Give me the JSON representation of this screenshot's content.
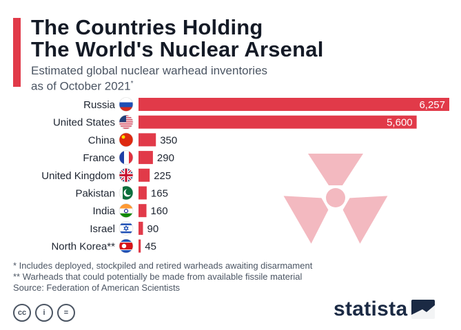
{
  "header": {
    "title_line1": "The Countries Holding",
    "title_line2": "The World's Nuclear Arsenal",
    "subtitle_line1": "Estimated global nuclear warhead inventories",
    "subtitle_line2": "as of October 2021",
    "subtitle_mark": "*"
  },
  "chart_data": {
    "type": "bar",
    "orientation": "horizontal",
    "categories": [
      "Russia",
      "United States",
      "China",
      "France",
      "United Kingdom",
      "Pakistan",
      "India",
      "Israel",
      "North Korea**"
    ],
    "values": [
      6257,
      5600,
      350,
      290,
      225,
      165,
      160,
      90,
      45
    ],
    "value_labels": [
      "6,257",
      "5,600",
      "350",
      "290",
      "225",
      "165",
      "160",
      "90",
      "45"
    ],
    "flags": [
      "flag-russia-icon",
      "flag-usa-icon",
      "flag-china-icon",
      "flag-france-icon",
      "flag-uk-icon",
      "flag-pakistan-icon",
      "flag-india-icon",
      "flag-israel-icon",
      "flag-north-korea-icon"
    ],
    "xlim": [
      0,
      6257
    ],
    "grid": false,
    "legend": "none",
    "bar_color": "#e13a49"
  },
  "notes": {
    "note1": "*  Includes deployed, stockpiled and retired warheads awaiting disarmament",
    "note2": "** Warheads that could potentially be made from available fissile material",
    "source": "Source: Federation of American Scientists"
  },
  "footer": {
    "license_icons": [
      "cc-icon",
      "attribution-icon",
      "no-derivatives-icon"
    ],
    "license_glyphs": [
      "cc",
      "i",
      "="
    ],
    "brand": "statista"
  },
  "decoration": {
    "icon": "radiation-symbol-icon",
    "color": "#f3b9c0"
  }
}
